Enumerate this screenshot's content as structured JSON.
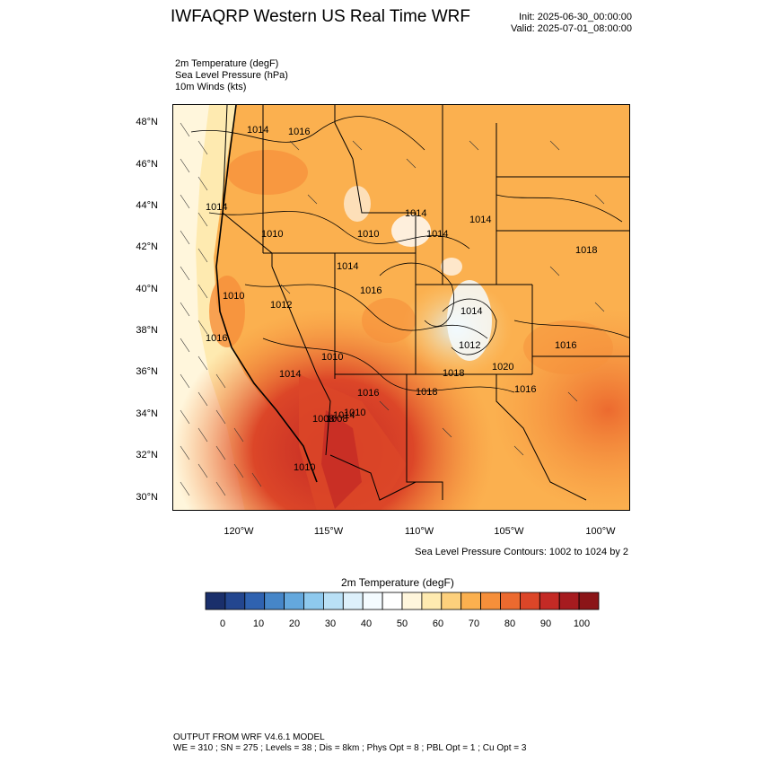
{
  "title": "IWFAQRP Western US Real Time WRF",
  "init": "Init: 2025-06-30_00:00:00",
  "valid": "Valid: 2025-07-01_08:00:00",
  "fields": [
    "2m Temperature   (degF)",
    "Sea Level Pressure   (hPa)",
    "10m Winds   (kts)"
  ],
  "lat_labels": [
    "48°N",
    "46°N",
    "44°N",
    "42°N",
    "40°N",
    "38°N",
    "36°N",
    "34°N",
    "32°N",
    "30°N"
  ],
  "lon_labels": [
    "120°W",
    "115°W",
    "110°W",
    "105°W",
    "100°W"
  ],
  "pressure_labels": [
    "1014",
    "1016",
    "1014",
    "1010",
    "1010",
    "1014",
    "1014",
    "1014",
    "1014",
    "1018",
    "1010",
    "1012",
    "1016",
    "1014",
    "1016",
    "1012",
    "1016",
    "1020",
    "1018",
    "1010",
    "1014",
    "1016",
    "1018",
    "1016",
    "1014",
    "1010",
    "1008",
    "1008",
    "1010"
  ],
  "slp_note": "Sea Level Pressure Contours: 1002 to 1024 by 2",
  "colorbar": {
    "title": "2m Temperature  (degF)",
    "labels": [
      "0",
      "10",
      "20",
      "30",
      "40",
      "50",
      "60",
      "70",
      "80",
      "90",
      "100"
    ],
    "colors": [
      "#1a2f6b",
      "#23468f",
      "#2f62b0",
      "#4686c8",
      "#64a8dd",
      "#8ec9ee",
      "#b9e0f6",
      "#ddf0fb",
      "#f4fbff",
      "#ffffff",
      "#fff6dc",
      "#feeab0",
      "#fdd07c",
      "#fbb04f",
      "#f68f3a",
      "#ec6a2f",
      "#dc4628",
      "#c42a25",
      "#a61b1f",
      "#8b1518"
    ]
  },
  "footer": {
    "line1": "OUTPUT FROM WRF V4.6.1 MODEL",
    "line2": "WE = 310 ; SN = 275 ; Levels = 38 ; Dis = 8km ; Phys Opt = 8 ; PBL Opt = 1 ; Cu Opt = 3"
  }
}
